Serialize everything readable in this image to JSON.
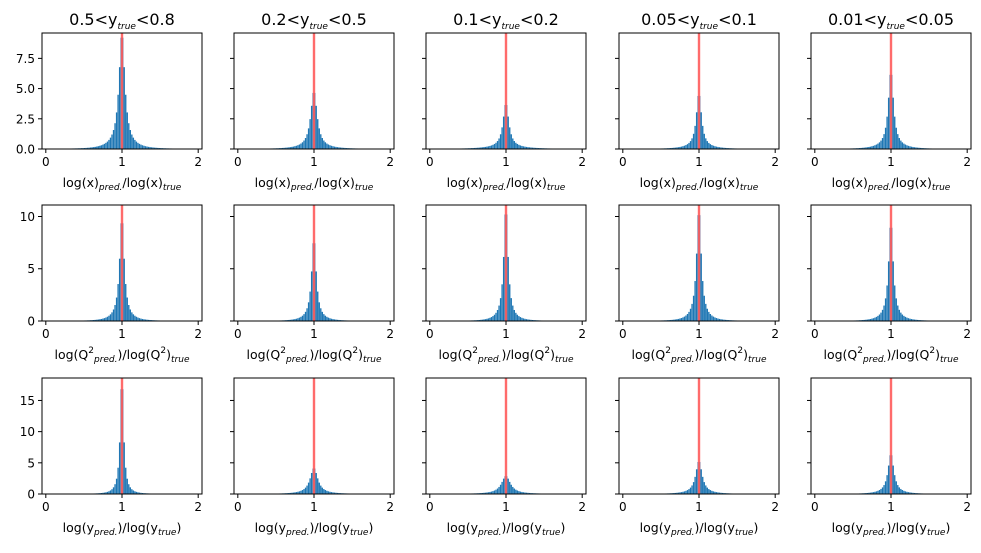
{
  "chart_data": {
    "type": "histogram-grid",
    "rows": 3,
    "cols": 5,
    "column_titles": [
      {
        "lo": "0.5",
        "hi": "0.8"
      },
      {
        "lo": "0.2",
        "hi": "0.5"
      },
      {
        "lo": "0.1",
        "hi": "0.2"
      },
      {
        "lo": "0.05",
        "hi": "0.1"
      },
      {
        "lo": "0.01",
        "hi": "0.05"
      }
    ],
    "title_symbol": "y",
    "title_subscript": "true",
    "title_lt": "<",
    "row_xlabels": [
      {
        "kind": "x",
        "a": "log(x)",
        "a_sub": "pred.",
        "slash": "/",
        "b": "log(x)",
        "b_sub": "true"
      },
      {
        "kind": "q",
        "a": "log(Q",
        "a_sup": "2",
        "a_sub": "pred.",
        "a_close": ")",
        "slash": "/",
        "b": "log(Q",
        "b_sup": "2",
        "b_close": ")",
        "b_sub": "true"
      },
      {
        "kind": "y",
        "a": "log(y",
        "a_sub": "pred.",
        "a_close": ")",
        "slash": "/",
        "b": "log(y",
        "b_sub": "true",
        "b_close": ")"
      }
    ],
    "x_ticks": [
      "0",
      "1",
      "2"
    ],
    "xlim": [
      -0.05,
      2.05
    ],
    "row_y_ticks": [
      [
        "0.0",
        "2.5",
        "5.0",
        "7.5"
      ],
      [
        "0",
        "5",
        "10"
      ],
      [
        "0",
        "5",
        "10",
        "15"
      ]
    ],
    "row_ylim": [
      [
        0,
        9.6
      ],
      [
        0,
        11.1
      ],
      [
        0,
        18.6
      ]
    ],
    "reference_line_x": 1.0,
    "colors": {
      "bars": "#1f77b4",
      "reference_line": "#ff5b5b",
      "axes": "#000000"
    },
    "bin_width": 0.02,
    "panels": [
      [
        {
          "peak": 8.9,
          "w": 0.045,
          "tail": 0.09,
          "tw": 0.11
        },
        {
          "peak": 4.6,
          "w": 0.05,
          "tail": 0.05,
          "tw": 0.17
        },
        {
          "peak": 3.6,
          "w": 0.045,
          "tail": 0.06,
          "tw": 0.26
        },
        {
          "peak": 4.4,
          "w": 0.04,
          "tail": 0.06,
          "tw": 0.17
        },
        {
          "peak": 6.1,
          "w": 0.04,
          "tail": 0.07,
          "tw": 0.14
        }
      ],
      [
        {
          "peak": 9.3,
          "w": 0.035,
          "tail": 0.09,
          "tw": 0.09
        },
        {
          "peak": 7.4,
          "w": 0.035,
          "tail": 0.09,
          "tw": 0.09
        },
        {
          "peak": 10.2,
          "w": 0.032,
          "tail": 0.1,
          "tw": 0.08
        },
        {
          "peak": 10.0,
          "w": 0.035,
          "tail": 0.1,
          "tw": 0.08
        },
        {
          "peak": 8.8,
          "w": 0.035,
          "tail": 0.1,
          "tw": 0.09
        }
      ],
      [
        {
          "peak": 17.8,
          "w": 0.025,
          "tail": 0.1,
          "tw": 0.05
        },
        {
          "peak": 4.0,
          "w": 0.06,
          "tail": 0.05,
          "tw": 0.17
        },
        {
          "peak": 2.8,
          "w": 0.07,
          "tail": 0.04,
          "tw": 0.24
        },
        {
          "peak": 5.0,
          "w": 0.05,
          "tail": 0.07,
          "tw": 0.15
        },
        {
          "peak": 6.1,
          "w": 0.045,
          "tail": 0.07,
          "tw": 0.13
        }
      ]
    ]
  }
}
